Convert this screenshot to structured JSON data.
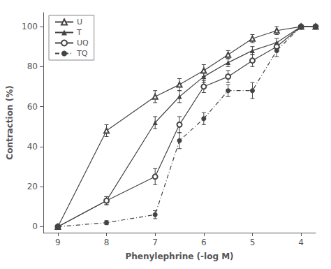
{
  "chart_data": {
    "type": "line",
    "xlabel": "Phenylephrine (-log M)",
    "ylabel": "Contraction (%)",
    "x": [
      9,
      8,
      7,
      6.5,
      6,
      5.5,
      5,
      4.5,
      4,
      3.7
    ],
    "series": [
      {
        "name": "U",
        "color": "#444444",
        "marker": "triangle-open",
        "line_style": "solid",
        "values": [
          0,
          48,
          65,
          71,
          78,
          86,
          94,
          98,
          100,
          100
        ],
        "yerr": [
          0,
          3,
          3,
          3,
          3,
          2,
          2,
          2,
          0,
          0
        ]
      },
      {
        "name": "T",
        "color": "#444444",
        "marker": "triangle",
        "line_style": "solid",
        "values": [
          0,
          13,
          52,
          65,
          75,
          82,
          88,
          92,
          100,
          100
        ],
        "yerr": [
          0,
          2,
          3,
          3,
          3,
          2,
          2,
          2,
          0,
          0
        ]
      },
      {
        "name": "UQ",
        "color": "#444444",
        "marker": "circle-open",
        "line_style": "solid",
        "values": [
          0,
          13,
          25,
          51,
          70,
          75,
          83,
          90,
          100,
          100
        ],
        "yerr": [
          0,
          2,
          4,
          4,
          3,
          3,
          3,
          2,
          0,
          0
        ]
      },
      {
        "name": "TQ",
        "color": "#444444",
        "marker": "circle",
        "line_style": "dashdot",
        "values": [
          0,
          2,
          6,
          43,
          54,
          68,
          68,
          88,
          100,
          100
        ],
        "yerr": [
          0,
          1,
          2,
          4,
          3,
          3,
          4,
          3,
          0,
          0
        ]
      }
    ],
    "xlim": [
      9.3,
      3.7
    ],
    "ylim": [
      -3,
      107
    ],
    "xticks": [
      9,
      8,
      7,
      6,
      5,
      4
    ],
    "yticks": [
      0,
      20,
      40,
      60,
      80,
      100
    ],
    "grid": false,
    "legend": "upper left"
  }
}
